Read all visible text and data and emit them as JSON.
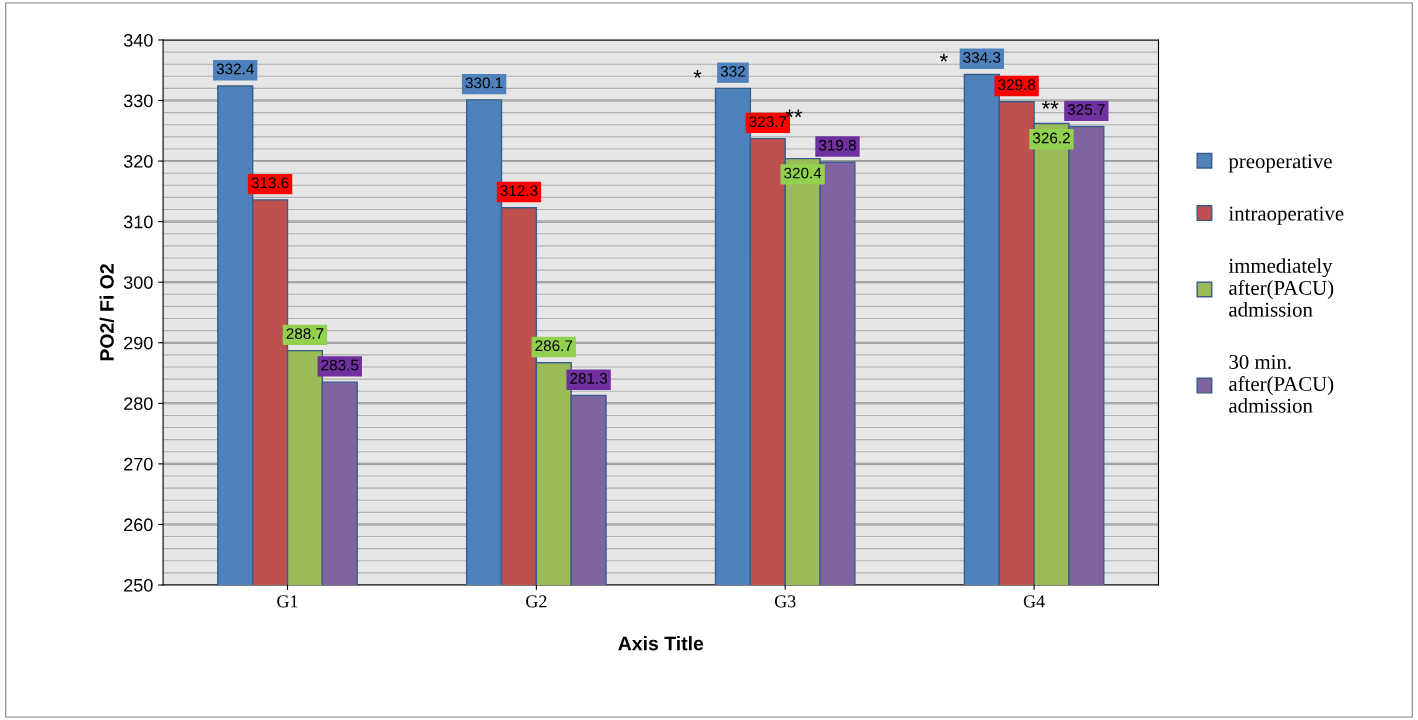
{
  "chart_data": {
    "type": "bar",
    "ylabel": "PO2/ Fi O2",
    "xlabel": "Axis Title",
    "categories": [
      "G1",
      "G2",
      "G3",
      "G4"
    ],
    "series": [
      {
        "name": "preoperative",
        "color": "#4f81bd",
        "values": [
          332.4,
          330.1,
          332,
          334.3
        ]
      },
      {
        "name": "intraoperative",
        "color": "#c0504d",
        "values": [
          313.6,
          312.3,
          323.7,
          329.8
        ]
      },
      {
        "name": "immediately after(PACU) admission",
        "color": "#9bbb59",
        "values": [
          288.7,
          286.7,
          320.4,
          326.2
        ]
      },
      {
        "name": "30 min. after(PACU) admission",
        "color": "#8064a2",
        "values": [
          283.5,
          281.3,
          319.8,
          325.7
        ]
      }
    ],
    "ylim": [
      250,
      340
    ],
    "yticks": [
      250,
      260,
      270,
      280,
      290,
      300,
      310,
      320,
      330,
      340
    ],
    "grid": "y",
    "legend": "right",
    "data_labels": true,
    "annotations": [
      "*",
      "**",
      "*",
      "**"
    ]
  }
}
